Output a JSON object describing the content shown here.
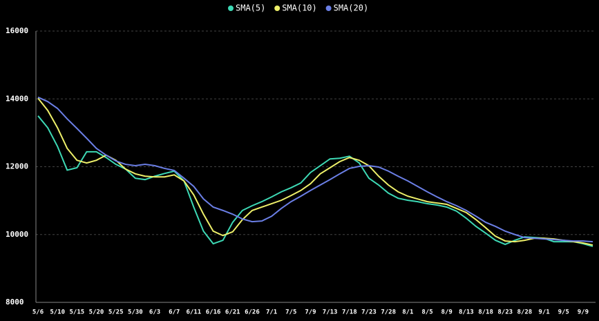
{
  "chart_data": {
    "type": "line",
    "categories": [
      "5/6",
      null,
      "5/10",
      null,
      "5/15",
      null,
      "5/20",
      null,
      "5/25",
      null,
      "5/30",
      null,
      "6/3",
      null,
      "6/7",
      null,
      "6/11",
      null,
      "6/16",
      null,
      "6/21",
      null,
      "6/26",
      null,
      "7/1",
      null,
      "7/5",
      null,
      "7/9",
      null,
      "7/13",
      null,
      "7/18",
      null,
      "7/23",
      null,
      "7/28",
      null,
      "8/1",
      null,
      "8/5",
      null,
      "8/9",
      null,
      "8/13",
      null,
      "8/18",
      null,
      "8/23",
      null,
      "8/28",
      null,
      "9/1",
      null,
      "9/5",
      null,
      "9/9",
      null
    ],
    "series": [
      {
        "name": "SMA(5)",
        "color": "#3dd9b5",
        "values": [
          13500,
          13150,
          12600,
          11900,
          11970,
          12440,
          12440,
          12270,
          12070,
          11930,
          11660,
          11620,
          11720,
          11800,
          11870,
          11580,
          10810,
          10100,
          9730,
          9830,
          10360,
          10710,
          10850,
          10970,
          11110,
          11260,
          11380,
          11520,
          11830,
          12030,
          12230,
          12250,
          12310,
          12110,
          11660,
          11460,
          11220,
          11070,
          11010,
          10970,
          10910,
          10870,
          10810,
          10690,
          10480,
          10240,
          10040,
          9830,
          9710,
          9830,
          9930,
          9910,
          9890,
          9790,
          9790,
          9790,
          9730,
          9650
        ]
      },
      {
        "name": "SMA(10)",
        "color": "#eef06a",
        "values": [
          14020,
          13660,
          13150,
          12540,
          12190,
          12110,
          12190,
          12340,
          12190,
          11930,
          11790,
          11720,
          11700,
          11700,
          11760,
          11580,
          11170,
          10600,
          10100,
          9970,
          10080,
          10440,
          10710,
          10810,
          10910,
          11010,
          11150,
          11300,
          11500,
          11790,
          11970,
          12150,
          12270,
          12190,
          12030,
          11720,
          11460,
          11260,
          11130,
          11050,
          10970,
          10930,
          10890,
          10770,
          10650,
          10440,
          10200,
          9950,
          9810,
          9790,
          9830,
          9890,
          9890,
          9870,
          9830,
          9790,
          9750,
          9690
        ]
      },
      {
        "name": "SMA(20)",
        "color": "#6b7fe6",
        "values": [
          14050,
          13920,
          13720,
          13410,
          13130,
          12840,
          12540,
          12340,
          12170,
          12070,
          12030,
          12070,
          12030,
          11950,
          11890,
          11660,
          11420,
          11050,
          10810,
          10710,
          10600,
          10460,
          10380,
          10400,
          10540,
          10770,
          10970,
          11130,
          11300,
          11460,
          11620,
          11790,
          11950,
          12010,
          12030,
          11990,
          11870,
          11720,
          11580,
          11420,
          11260,
          11110,
          10970,
          10850,
          10710,
          10540,
          10360,
          10240,
          10100,
          10000,
          9910,
          9890,
          9870,
          9850,
          9830,
          9810,
          9810,
          9790
        ]
      }
    ],
    "ylim": [
      8000,
      16000
    ],
    "yticks": [
      8000,
      10000,
      12000,
      14000,
      16000
    ],
    "grid": true
  }
}
